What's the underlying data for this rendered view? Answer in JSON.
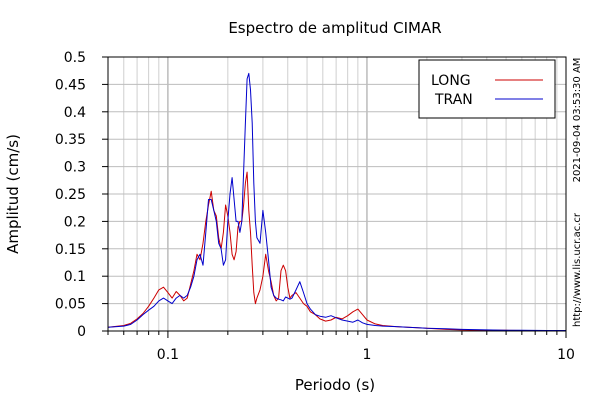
{
  "chart_data": {
    "type": "line",
    "title": "Espectro de amplitud CIMAR",
    "xlabel": "Periodo (s)",
    "ylabel": "Amplitud (cm/s)",
    "xscale": "log",
    "xlim": [
      0.05,
      10
    ],
    "ylim": [
      0,
      0.5
    ],
    "xticks": [
      {
        "value": 0.1,
        "label": "0.1"
      },
      {
        "value": 1,
        "label": "1"
      },
      {
        "value": 10,
        "label": "10"
      }
    ],
    "yticks": [
      {
        "value": 0,
        "label": "0"
      },
      {
        "value": 0.05,
        "label": "0.05"
      },
      {
        "value": 0.1,
        "label": "0.1"
      },
      {
        "value": 0.15,
        "label": "0.15"
      },
      {
        "value": 0.2,
        "label": "0.2"
      },
      {
        "value": 0.25,
        "label": "0.25"
      },
      {
        "value": 0.3,
        "label": "0.3"
      },
      {
        "value": 0.35,
        "label": "0.35"
      },
      {
        "value": 0.4,
        "label": "0.4"
      },
      {
        "value": 0.45,
        "label": "0.45"
      },
      {
        "value": 0.5,
        "label": "0.5"
      }
    ],
    "grid": true,
    "legend_position": "top-right",
    "side_text": [
      "2021-09-04 03:53:30 AM",
      "http://www.lis.ucr.ac.cr"
    ],
    "series": [
      {
        "name": "LONG",
        "color": "#cc0000",
        "x": [
          0.05,
          0.06,
          0.065,
          0.07,
          0.075,
          0.08,
          0.085,
          0.09,
          0.095,
          0.1,
          0.105,
          0.11,
          0.115,
          0.12,
          0.125,
          0.13,
          0.135,
          0.14,
          0.145,
          0.15,
          0.155,
          0.16,
          0.165,
          0.17,
          0.175,
          0.18,
          0.185,
          0.19,
          0.195,
          0.2,
          0.205,
          0.21,
          0.215,
          0.22,
          0.225,
          0.23,
          0.235,
          0.24,
          0.245,
          0.25,
          0.255,
          0.26,
          0.265,
          0.27,
          0.275,
          0.28,
          0.29,
          0.3,
          0.31,
          0.32,
          0.33,
          0.34,
          0.35,
          0.36,
          0.37,
          0.38,
          0.39,
          0.4,
          0.41,
          0.42,
          0.44,
          0.46,
          0.48,
          0.5,
          0.52,
          0.55,
          0.58,
          0.62,
          0.66,
          0.7,
          0.75,
          0.8,
          0.85,
          0.9,
          0.95,
          1.0,
          1.1,
          1.2,
          1.4,
          1.6,
          1.8,
          2.0,
          2.5,
          3.0,
          4.0,
          5.0,
          6.0,
          8.0,
          10.0
        ],
        "y": [
          0.007,
          0.01,
          0.014,
          0.022,
          0.032,
          0.045,
          0.06,
          0.075,
          0.08,
          0.07,
          0.06,
          0.072,
          0.065,
          0.055,
          0.06,
          0.085,
          0.11,
          0.14,
          0.13,
          0.16,
          0.2,
          0.23,
          0.255,
          0.22,
          0.21,
          0.17,
          0.15,
          0.18,
          0.23,
          0.21,
          0.18,
          0.14,
          0.13,
          0.145,
          0.19,
          0.2,
          0.2,
          0.23,
          0.27,
          0.29,
          0.22,
          0.18,
          0.12,
          0.07,
          0.05,
          0.06,
          0.075,
          0.1,
          0.14,
          0.11,
          0.09,
          0.065,
          0.055,
          0.06,
          0.11,
          0.12,
          0.11,
          0.08,
          0.06,
          0.065,
          0.07,
          0.06,
          0.05,
          0.045,
          0.035,
          0.03,
          0.022,
          0.018,
          0.02,
          0.025,
          0.022,
          0.028,
          0.035,
          0.04,
          0.03,
          0.02,
          0.013,
          0.01,
          0.008,
          0.007,
          0.006,
          0.005,
          0.003,
          0.002,
          0.0015,
          0.0012,
          0.001,
          0.001,
          0.001
        ]
      },
      {
        "name": "TRAN",
        "color": "#0000cc",
        "x": [
          0.05,
          0.06,
          0.065,
          0.07,
          0.075,
          0.08,
          0.085,
          0.09,
          0.095,
          0.1,
          0.105,
          0.11,
          0.115,
          0.12,
          0.125,
          0.13,
          0.135,
          0.14,
          0.145,
          0.15,
          0.155,
          0.16,
          0.165,
          0.17,
          0.175,
          0.18,
          0.185,
          0.19,
          0.195,
          0.2,
          0.205,
          0.21,
          0.215,
          0.22,
          0.225,
          0.23,
          0.235,
          0.24,
          0.245,
          0.25,
          0.255,
          0.26,
          0.265,
          0.27,
          0.275,
          0.28,
          0.29,
          0.3,
          0.31,
          0.32,
          0.33,
          0.34,
          0.35,
          0.36,
          0.37,
          0.38,
          0.39,
          0.4,
          0.41,
          0.42,
          0.44,
          0.46,
          0.48,
          0.5,
          0.52,
          0.55,
          0.58,
          0.62,
          0.66,
          0.7,
          0.75,
          0.8,
          0.85,
          0.9,
          0.95,
          1.0,
          1.1,
          1.2,
          1.4,
          1.6,
          1.8,
          2.0,
          2.5,
          3.0,
          4.0,
          5.0,
          6.0,
          8.0,
          10.0
        ],
        "y": [
          0.007,
          0.009,
          0.012,
          0.02,
          0.03,
          0.038,
          0.045,
          0.055,
          0.06,
          0.055,
          0.05,
          0.06,
          0.065,
          0.06,
          0.065,
          0.08,
          0.1,
          0.13,
          0.14,
          0.12,
          0.18,
          0.24,
          0.24,
          0.22,
          0.2,
          0.16,
          0.15,
          0.12,
          0.13,
          0.2,
          0.25,
          0.28,
          0.24,
          0.2,
          0.2,
          0.18,
          0.2,
          0.29,
          0.38,
          0.46,
          0.47,
          0.44,
          0.38,
          0.27,
          0.2,
          0.17,
          0.16,
          0.22,
          0.18,
          0.13,
          0.08,
          0.065,
          0.06,
          0.058,
          0.057,
          0.055,
          0.062,
          0.06,
          0.058,
          0.06,
          0.075,
          0.09,
          0.07,
          0.05,
          0.04,
          0.03,
          0.027,
          0.025,
          0.028,
          0.024,
          0.02,
          0.018,
          0.016,
          0.02,
          0.015,
          0.012,
          0.01,
          0.009,
          0.008,
          0.007,
          0.006,
          0.005,
          0.004,
          0.003,
          0.002,
          0.0015,
          0.0012,
          0.001,
          0.001
        ]
      }
    ]
  }
}
